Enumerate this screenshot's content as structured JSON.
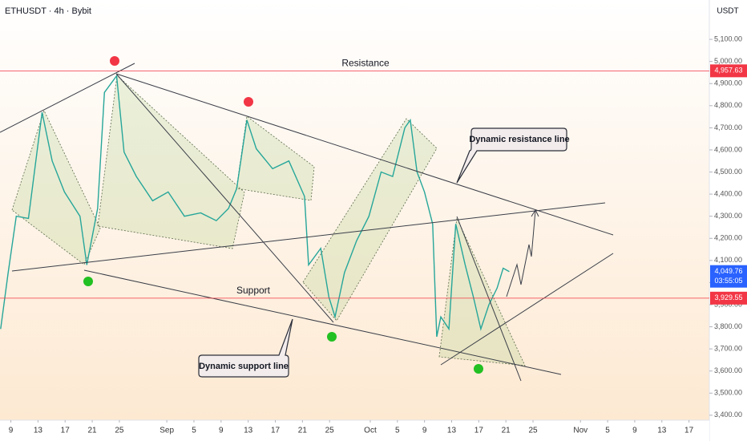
{
  "chart_data": {
    "type": "line",
    "title": "ETHUSDT · 4h · Bybit",
    "currency": "USDT",
    "color": "#26a69a",
    "x": [
      -1.5,
      -0.4,
      0.8,
      2.6,
      4.6,
      6.1,
      7.9,
      10.2,
      11.2,
      12.8,
      13.8,
      15.6,
      16.7,
      18.5,
      20.9,
      23.2,
      25.6,
      28,
      30.3,
      32.1,
      33.3,
      34.8,
      36.2,
      38.6,
      41,
      43.3,
      43.9,
      45.7,
      46.9,
      47.8,
      49.2,
      51,
      52.8,
      54.6,
      56.3,
      58.1,
      58.9,
      59.9,
      61,
      62.2,
      62.8,
      63.4,
      64.6,
      65.6,
      67,
      68.2,
      69.3,
      70.5,
      71.7,
      72.6,
      73.5
    ],
    "values": [
      3790,
      4045,
      4300,
      4290,
      4770,
      4550,
      4410,
      4300,
      4080,
      4335,
      4860,
      4935,
      4590,
      4480,
      4370,
      4410,
      4300,
      4315,
      4280,
      4335,
      4425,
      4735,
      4605,
      4515,
      4550,
      4390,
      4080,
      4155,
      3935,
      3845,
      4045,
      4190,
      4300,
      4500,
      4480,
      4700,
      4735,
      4500,
      4410,
      4265,
      3755,
      3845,
      3790,
      4265,
      4080,
      3935,
      3790,
      3900,
      3975,
      4065,
      4049.76
    ],
    "xlim": [
      -1.6,
      103
    ],
    "xticks": [
      {
        "value": 0,
        "label": "9"
      },
      {
        "value": 4,
        "label": "13"
      },
      {
        "value": 8,
        "label": "17"
      },
      {
        "value": 12,
        "label": "21"
      },
      {
        "value": 16,
        "label": "25"
      },
      {
        "value": 23,
        "label": "Sep"
      },
      {
        "value": 27,
        "label": "5"
      },
      {
        "value": 31,
        "label": "9"
      },
      {
        "value": 35,
        "label": "13"
      },
      {
        "value": 39,
        "label": "17"
      },
      {
        "value": 43,
        "label": "21"
      },
      {
        "value": 47,
        "label": "25"
      },
      {
        "value": 53,
        "label": "Oct"
      },
      {
        "value": 57,
        "label": "5"
      },
      {
        "value": 61,
        "label": "9"
      },
      {
        "value": 65,
        "label": "13"
      },
      {
        "value": 69,
        "label": "17"
      },
      {
        "value": 73,
        "label": "21"
      },
      {
        "value": 77,
        "label": "25"
      },
      {
        "value": 84,
        "label": "Nov"
      },
      {
        "value": 88,
        "label": "5"
      },
      {
        "value": 92,
        "label": "9"
      },
      {
        "value": 96,
        "label": "13"
      },
      {
        "value": 100,
        "label": "17"
      }
    ],
    "ylim": [
      3385,
      5278
    ],
    "yticks": [
      {
        "value": 3400,
        "label": "3,400.00"
      },
      {
        "value": 3500,
        "label": "3,500.00"
      },
      {
        "value": 3600,
        "label": "3,600.00"
      },
      {
        "value": 3700,
        "label": "3,700.00"
      },
      {
        "value": 3800,
        "label": "3,800.00"
      },
      {
        "value": 3900,
        "label": "3,900.00"
      },
      {
        "value": 4000,
        "label": "4,000.00"
      },
      {
        "value": 4100,
        "label": "4,100.00"
      },
      {
        "value": 4200,
        "label": "4,200.00"
      },
      {
        "value": 4300,
        "label": "4,300.00"
      },
      {
        "value": 4400,
        "label": "4,400.00"
      },
      {
        "value": 4500,
        "label": "4,500.00"
      },
      {
        "value": 4600,
        "label": "4,600.00"
      },
      {
        "value": 4700,
        "label": "4,700.00"
      },
      {
        "value": 4800,
        "label": "4,800.00"
      },
      {
        "value": 4900,
        "label": "4,900.00"
      },
      {
        "value": 5000,
        "label": "5,000.00"
      },
      {
        "value": 5100,
        "label": "5,100.00"
      }
    ],
    "levels": [
      {
        "name": "Resistance",
        "value": 4957.63,
        "label": "4,957.63",
        "color": "#f23645"
      },
      {
        "name": "Support",
        "value": 3929.55,
        "label": "3,929.55",
        "color": "#f23645"
      }
    ],
    "last_price": {
      "value": 4049.76,
      "label": "4,049.76",
      "countdown": "03:55:05",
      "color": "#2962ff"
    },
    "annotations": [
      "Dynamic resistance line",
      "Dynamic support line"
    ]
  }
}
